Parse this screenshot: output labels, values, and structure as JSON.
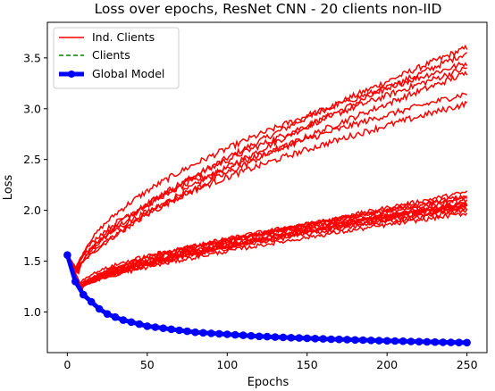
{
  "chart_data": {
    "type": "line",
    "title": "Loss over epochs, ResNet CNN - 20 clients non-IID",
    "xlabel": "Epochs",
    "ylabel": "Loss",
    "xlim": [
      -12.5,
      262.5
    ],
    "ylim": [
      0.6,
      3.85
    ],
    "xticks": [
      0,
      50,
      100,
      150,
      200,
      250
    ],
    "yticks": [
      1.0,
      1.5,
      2.0,
      2.5,
      3.0,
      3.5
    ],
    "grid": false,
    "legend_position": "top-left",
    "legend": [
      {
        "label": "Ind. Clients",
        "style": "solid",
        "color": "#ff0000"
      },
      {
        "label": "Clients",
        "style": "dashed",
        "color": "#008000"
      },
      {
        "label": "Global Model",
        "style": "thick-marker",
        "color": "#0000ff"
      }
    ],
    "client_groups": [
      {
        "count": 7,
        "start": 1.56,
        "min_epoch": 6,
        "min_value": 1.4,
        "end_values": [
          3.6,
          3.55,
          3.45,
          3.4,
          3.35,
          3.15,
          3.05
        ],
        "noise": 0.03
      },
      {
        "count": 13,
        "start": 1.56,
        "min_epoch": 8,
        "min_value": 1.23,
        "end_values": [
          2.18,
          2.14,
          2.12,
          2.1,
          2.08,
          2.07,
          2.06,
          2.05,
          2.04,
          2.03,
          2.02,
          2.0,
          1.97
        ],
        "noise": 0.02
      }
    ],
    "global_model": {
      "x": [
        0,
        5,
        10,
        15,
        20,
        25,
        30,
        35,
        40,
        45,
        50,
        55,
        60,
        65,
        70,
        75,
        80,
        85,
        90,
        95,
        100,
        105,
        110,
        115,
        120,
        125,
        130,
        135,
        140,
        145,
        150,
        155,
        160,
        165,
        170,
        175,
        180,
        185,
        190,
        195,
        200,
        205,
        210,
        215,
        220,
        225,
        230,
        235,
        240,
        245,
        250
      ],
      "y": [
        1.56,
        1.3,
        1.17,
        1.1,
        1.03,
        0.98,
        0.95,
        0.92,
        0.9,
        0.88,
        0.86,
        0.85,
        0.84,
        0.83,
        0.82,
        0.81,
        0.8,
        0.795,
        0.79,
        0.785,
        0.78,
        0.775,
        0.77,
        0.765,
        0.76,
        0.757,
        0.753,
        0.75,
        0.747,
        0.744,
        0.741,
        0.738,
        0.735,
        0.732,
        0.73,
        0.728,
        0.725,
        0.723,
        0.72,
        0.718,
        0.716,
        0.714,
        0.712,
        0.71,
        0.708,
        0.706,
        0.704,
        0.702,
        0.7,
        0.699,
        0.698
      ]
    }
  }
}
